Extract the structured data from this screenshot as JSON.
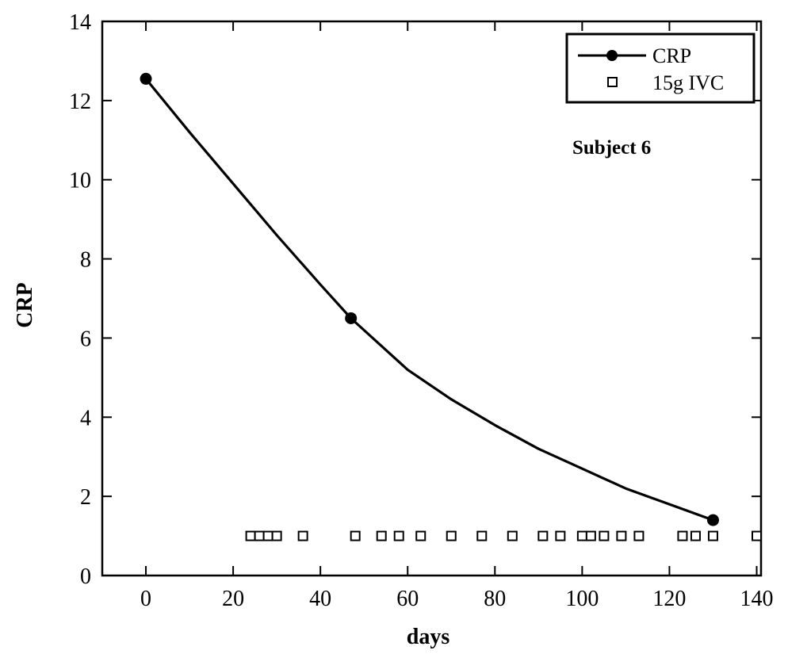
{
  "chart_data": {
    "type": "line",
    "xlabel": "days",
    "ylabel": "CRP",
    "xlim": [
      -10,
      141
    ],
    "ylim": [
      0,
      14
    ],
    "xticks": [
      0,
      20,
      40,
      60,
      80,
      100,
      120,
      140
    ],
    "yticks": [
      0,
      2,
      4,
      6,
      8,
      10,
      12,
      14
    ],
    "annotation": "Subject 6",
    "legend_position": "top-right",
    "series": [
      {
        "name": "CRP",
        "style": "line-with-markers",
        "color": "#000000",
        "marker_points": [
          {
            "x": 0,
            "y": 12.55
          },
          {
            "x": 47,
            "y": 6.5
          },
          {
            "x": 130,
            "y": 1.4
          }
        ],
        "curve": [
          {
            "x": 0,
            "y": 12.55
          },
          {
            "x": 10,
            "y": 11.2
          },
          {
            "x": 20,
            "y": 9.9
          },
          {
            "x": 30,
            "y": 8.6
          },
          {
            "x": 40,
            "y": 7.35
          },
          {
            "x": 47,
            "y": 6.5
          },
          {
            "x": 60,
            "y": 5.2
          },
          {
            "x": 70,
            "y": 4.45
          },
          {
            "x": 80,
            "y": 3.8
          },
          {
            "x": 90,
            "y": 3.2
          },
          {
            "x": 100,
            "y": 2.7
          },
          {
            "x": 110,
            "y": 2.2
          },
          {
            "x": 120,
            "y": 1.8
          },
          {
            "x": 130,
            "y": 1.4
          }
        ]
      },
      {
        "name": "15g IVC",
        "style": "open-square-markers",
        "color": "#000000",
        "points": [
          {
            "x": 24,
            "y": 1
          },
          {
            "x": 26,
            "y": 1
          },
          {
            "x": 28,
            "y": 1
          },
          {
            "x": 30,
            "y": 1
          },
          {
            "x": 36,
            "y": 1
          },
          {
            "x": 48,
            "y": 1
          },
          {
            "x": 54,
            "y": 1
          },
          {
            "x": 58,
            "y": 1
          },
          {
            "x": 63,
            "y": 1
          },
          {
            "x": 70,
            "y": 1
          },
          {
            "x": 77,
            "y": 1
          },
          {
            "x": 84,
            "y": 1
          },
          {
            "x": 91,
            "y": 1
          },
          {
            "x": 95,
            "y": 1
          },
          {
            "x": 100,
            "y": 1
          },
          {
            "x": 102,
            "y": 1
          },
          {
            "x": 105,
            "y": 1
          },
          {
            "x": 109,
            "y": 1
          },
          {
            "x": 113,
            "y": 1
          },
          {
            "x": 123,
            "y": 1
          },
          {
            "x": 126,
            "y": 1
          },
          {
            "x": 130,
            "y": 1
          },
          {
            "x": 140,
            "y": 1
          }
        ]
      }
    ]
  }
}
